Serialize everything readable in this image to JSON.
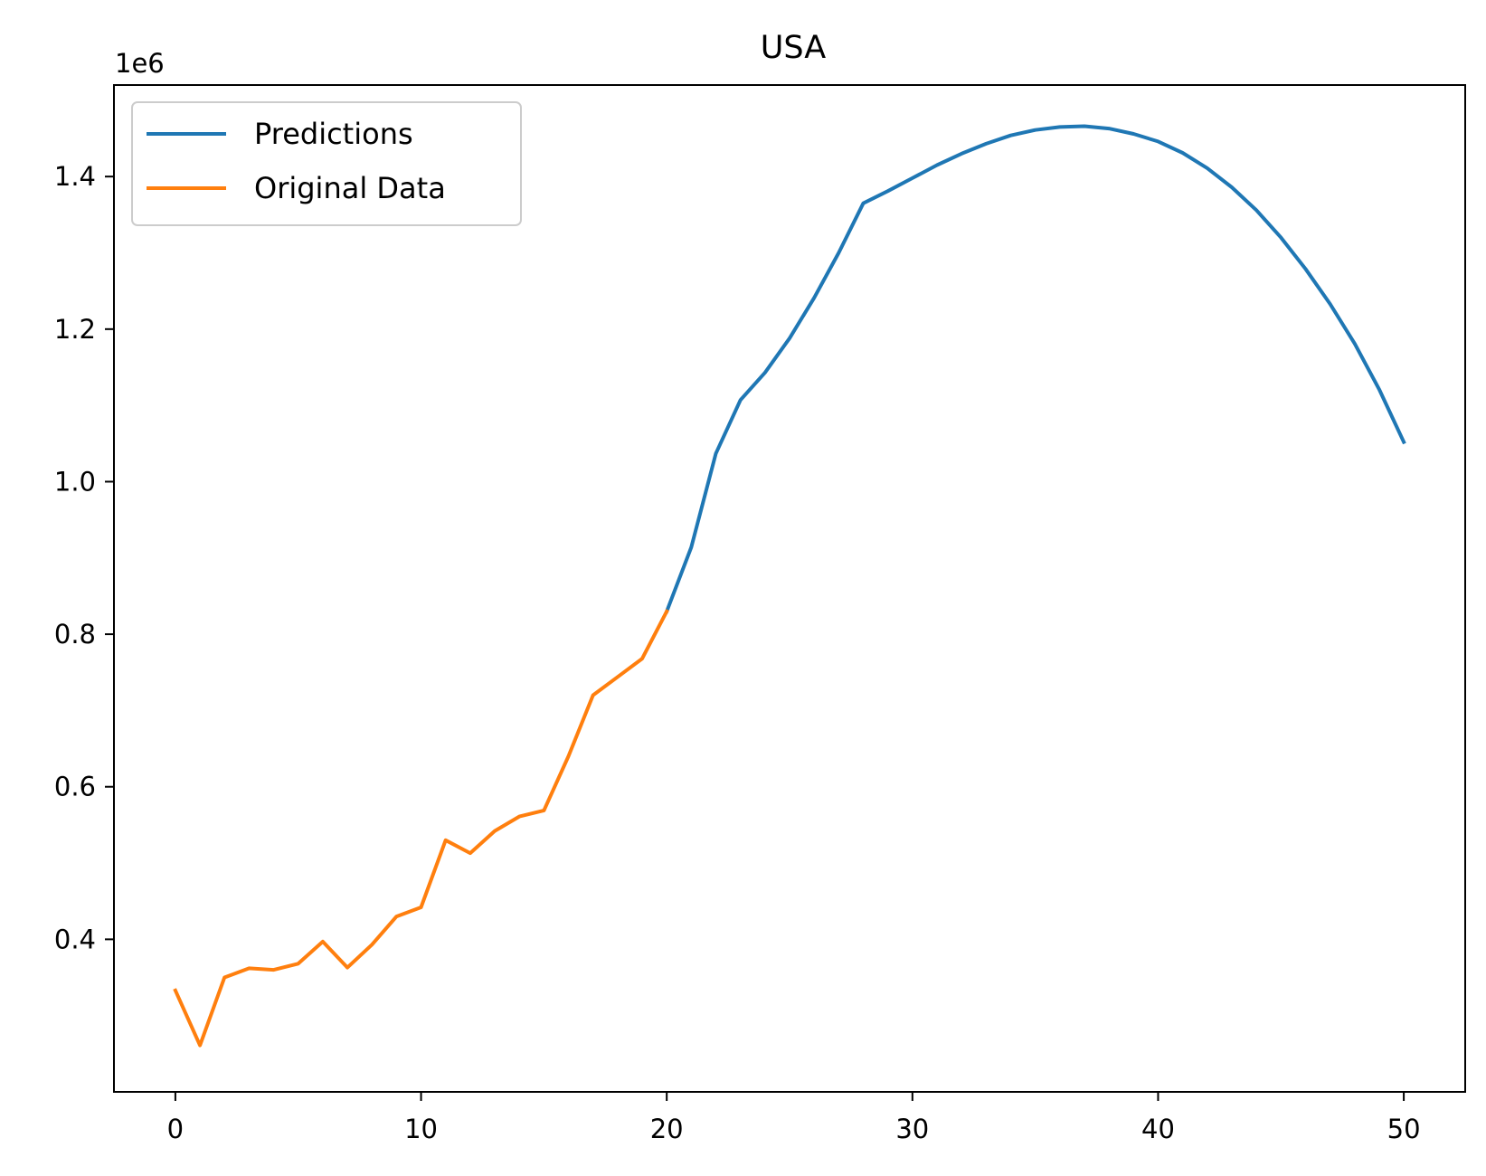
{
  "chart_data": {
    "type": "line",
    "title": "USA",
    "xlabel": "",
    "ylabel": "",
    "y_offset_label": "1e6",
    "xlim": [
      -2.5,
      52.5
    ],
    "ylim": [
      0.2,
      1.52
    ],
    "x_ticks": [
      0,
      10,
      20,
      30,
      40,
      50
    ],
    "x_tick_labels": [
      "0",
      "10",
      "20",
      "30",
      "40",
      "50"
    ],
    "y_ticks": [
      0.4,
      0.6,
      0.8,
      1.0,
      1.2,
      1.4
    ],
    "y_tick_labels": [
      "0.4",
      "0.6",
      "0.8",
      "1.0",
      "1.2",
      "1.4"
    ],
    "grid": false,
    "legend_position": "upper-left",
    "series": [
      {
        "name": "Predictions",
        "color": "#1f77b4",
        "x": [
          20,
          21,
          22,
          23,
          24,
          25,
          26,
          27,
          28,
          29,
          30,
          31,
          32,
          33,
          34,
          35,
          36,
          37,
          38,
          39,
          40,
          41,
          42,
          43,
          44,
          45,
          46,
          47,
          48,
          49,
          50
        ],
        "y": [
          0.83,
          0.914,
          1.037,
          1.107,
          1.143,
          1.188,
          1.241,
          1.3,
          1.365,
          1.381,
          1.398,
          1.415,
          1.43,
          1.443,
          1.454,
          1.461,
          1.465,
          1.466,
          1.463,
          1.456,
          1.446,
          1.431,
          1.411,
          1.386,
          1.356,
          1.32,
          1.279,
          1.233,
          1.181,
          1.121,
          1.052
        ]
      },
      {
        "name": "Original Data",
        "color": "#ff7f0e",
        "x": [
          0,
          1,
          2,
          3,
          4,
          5,
          6,
          7,
          8,
          9,
          10,
          11,
          12,
          13,
          14,
          15,
          16,
          17,
          18,
          19,
          20
        ],
        "y": [
          0.333,
          0.261,
          0.35,
          0.362,
          0.36,
          0.368,
          0.397,
          0.363,
          0.393,
          0.43,
          0.442,
          0.53,
          0.513,
          0.542,
          0.561,
          0.569,
          0.64,
          0.72,
          0.744,
          0.768,
          0.83
        ]
      }
    ]
  }
}
